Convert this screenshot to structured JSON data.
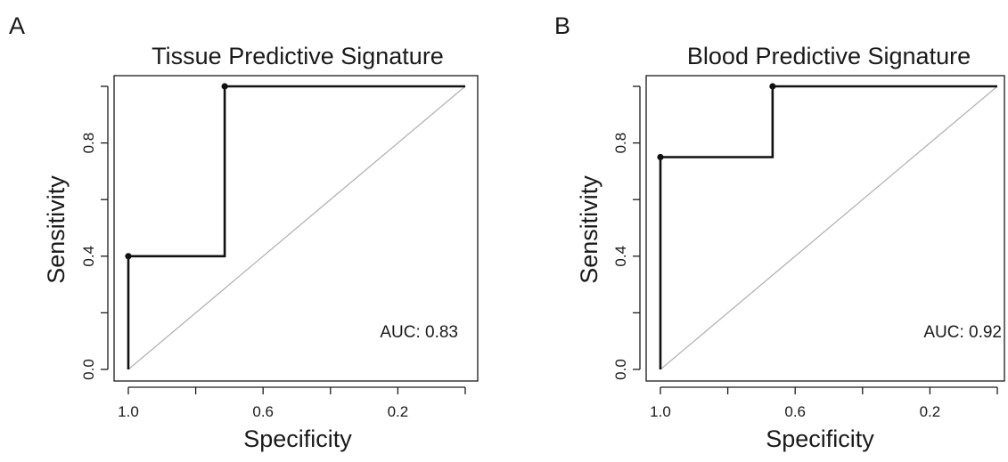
{
  "chart_data": [
    {
      "type": "line",
      "panel_label": "A",
      "title": "Tissue Predictive Signature",
      "xlabel": "Specificity",
      "ylabel": "Sensitivity",
      "x_reversed": true,
      "xlim": [
        1.0,
        0.0
      ],
      "ylim": [
        0.0,
        1.0
      ],
      "x_ticks": [
        1.0,
        0.8,
        0.6,
        0.4,
        0.2,
        0.0
      ],
      "x_tick_labels": [
        "1.0",
        "",
        "0.6",
        "",
        "0.2",
        ""
      ],
      "y_ticks": [
        0.0,
        0.2,
        0.4,
        0.6,
        0.8,
        1.0
      ],
      "y_tick_labels": [
        "0.0",
        "",
        "0.4",
        "",
        "0.8",
        ""
      ],
      "series": [
        {
          "x": [
            1.0,
            1.0,
            1.0,
            0.714,
            0.714,
            0.0
          ],
          "y": [
            0.0,
            0.4,
            0.4,
            0.4,
            1.0,
            1.0
          ]
        }
      ],
      "points": [
        {
          "x": 1.0,
          "y": 0.4
        },
        {
          "x": 0.714,
          "y": 1.0
        }
      ],
      "reference_line": {
        "x": [
          1.0,
          0.0
        ],
        "y": [
          0.0,
          1.0
        ],
        "color": "#b4b4b4"
      },
      "annotation": "AUC: 0.83",
      "annotation_pos": {
        "x": 0.0,
        "y": 0.14
      },
      "grid": false
    },
    {
      "type": "line",
      "panel_label": "B",
      "title": "Blood Predictive Signature",
      "xlabel": "Specificity",
      "ylabel": "Sensitivity",
      "x_reversed": true,
      "xlim": [
        1.0,
        0.0
      ],
      "ylim": [
        0.0,
        1.0
      ],
      "x_ticks": [
        1.0,
        0.8,
        0.6,
        0.4,
        0.2,
        0.0
      ],
      "x_tick_labels": [
        "1.0",
        "",
        "0.6",
        "",
        "0.2",
        ""
      ],
      "y_ticks": [
        0.0,
        0.2,
        0.4,
        0.6,
        0.8,
        1.0
      ],
      "y_tick_labels": [
        "0.0",
        "",
        "0.4",
        "",
        "0.8",
        ""
      ],
      "series": [
        {
          "x": [
            1.0,
            1.0,
            1.0,
            0.667,
            0.667,
            0.0
          ],
          "y": [
            0.0,
            0.75,
            0.75,
            0.75,
            1.0,
            1.0
          ]
        }
      ],
      "points": [
        {
          "x": 1.0,
          "y": 0.75
        },
        {
          "x": 0.667,
          "y": 1.0
        }
      ],
      "reference_line": {
        "x": [
          1.0,
          0.0
        ],
        "y": [
          0.0,
          1.0
        ],
        "color": "#b4b4b4"
      },
      "annotation": "AUC: 0.92",
      "annotation_pos": {
        "x": 0.0,
        "y": 0.14
      },
      "grid": false
    }
  ]
}
